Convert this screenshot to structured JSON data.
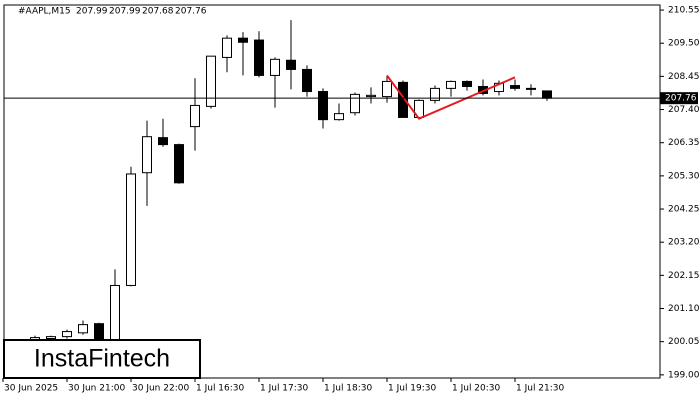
{
  "chart_data": {
    "type": "candlestick",
    "title": "#AAPL,M15",
    "logo": "InstaFintech",
    "categories": [
      "30 Jun 2025",
      null,
      null,
      null,
      "30 Jun 21:00",
      null,
      null,
      null,
      "30 Jun 22:00",
      null,
      null,
      null,
      "1 Jul 16:30",
      null,
      null,
      null,
      "1 Jul 17:30",
      null,
      null,
      null,
      "1 Jul 18:30",
      null,
      null,
      null,
      "1 Jul 19:30",
      null,
      null,
      null,
      "1 Jul 20:30",
      null,
      null,
      null,
      "1 Jul 21:30",
      null,
      null
    ],
    "open": [
      200.05,
      200.05,
      200.08,
      200.15,
      200.21,
      200.33,
      200.62,
      200.05,
      201.83,
      205.4,
      206.51,
      206.29,
      206.86,
      207.5,
      209.05,
      209.66,
      209.6,
      208.48,
      208.96,
      208.67,
      207.97,
      207.08,
      207.3,
      207.81,
      207.81,
      208.26,
      207.15,
      207.69,
      208.07,
      208.29,
      208.13,
      207.97,
      208.16,
      208.07,
      207.99
    ],
    "high": [
      200.08,
      200.08,
      200.24,
      200.24,
      200.43,
      200.72,
      200.65,
      202.34,
      205.59,
      207.05,
      207.11,
      206.32,
      208.39,
      209.09,
      209.75,
      209.85,
      209.88,
      209.05,
      210.23,
      208.8,
      208.07,
      207.59,
      207.94,
      208.1,
      208.48,
      208.32,
      207.72,
      208.16,
      208.32,
      208.32,
      208.35,
      208.32,
      208.35,
      208.2,
      207.99
    ],
    "low": [
      200.02,
      200.02,
      200.05,
      200.12,
      200.15,
      200.27,
      199.89,
      199.89,
      201.8,
      204.35,
      206.22,
      205.05,
      206.1,
      207.43,
      208.58,
      208.48,
      208.42,
      207.46,
      208.04,
      207.81,
      206.8,
      207.05,
      207.21,
      207.59,
      207.62,
      207.15,
      207.11,
      207.59,
      207.81,
      208.0,
      207.85,
      207.85,
      208.0,
      207.85,
      207.68
    ],
    "close": [
      200.05,
      200.08,
      200.18,
      200.21,
      200.37,
      200.59,
      200.05,
      201.83,
      205.36,
      206.54,
      206.29,
      205.08,
      207.53,
      209.09,
      209.66,
      209.53,
      208.48,
      208.99,
      208.67,
      207.97,
      207.08,
      207.27,
      207.88,
      207.85,
      208.29,
      207.15,
      207.69,
      208.07,
      208.29,
      208.13,
      207.91,
      208.23,
      208.07,
      208.04,
      207.76
    ],
    "up_color": "#ffffff",
    "down_color": "#000000",
    "pattern": {
      "color": "#e8191f",
      "x": [
        24,
        26,
        32
      ],
      "values": [
        208.48,
        207.11,
        208.42
      ]
    },
    "ylim": [
      198.9,
      210.71
    ],
    "yticks": [
      210.55,
      {
        "value": 209.5,
        "label": "209.50"
      },
      208.45,
      {
        "value": 207.4,
        "label": "207.40"
      },
      206.35,
      {
        "value": 205.3,
        "label": "205.30"
      },
      204.25,
      {
        "value": 203.2,
        "label": "203.20"
      },
      202.15,
      {
        "value": 201.1,
        "label": "201.10"
      },
      200.05,
      {
        "value": 199,
        "label": "199.00"
      }
    ]
  }
}
